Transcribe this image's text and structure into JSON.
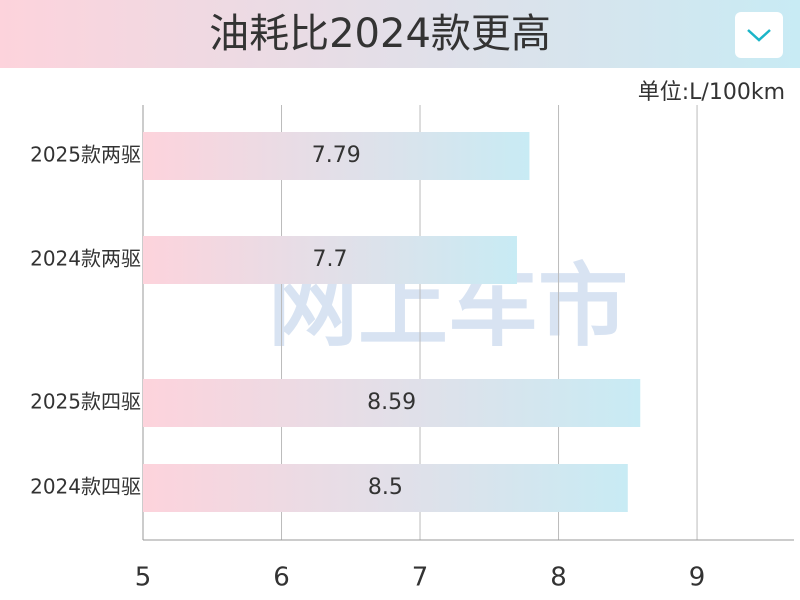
{
  "chart_data": {
    "type": "bar",
    "orientation": "horizontal",
    "title": "油耗比2024款更高",
    "unit_label": "单位:L/100km",
    "watermark": "网上车市",
    "categories": [
      "2025款两驱",
      "2024款两驱",
      "2025款四驱",
      "2024款四驱"
    ],
    "values": [
      7.79,
      7.7,
      8.59,
      8.5
    ],
    "gradient": [
      "#fdd3dc",
      "#c8ebf4"
    ],
    "xlim": [
      5,
      9.7
    ],
    "xticks": [
      5,
      6,
      7,
      8,
      9
    ],
    "grid": true
  }
}
